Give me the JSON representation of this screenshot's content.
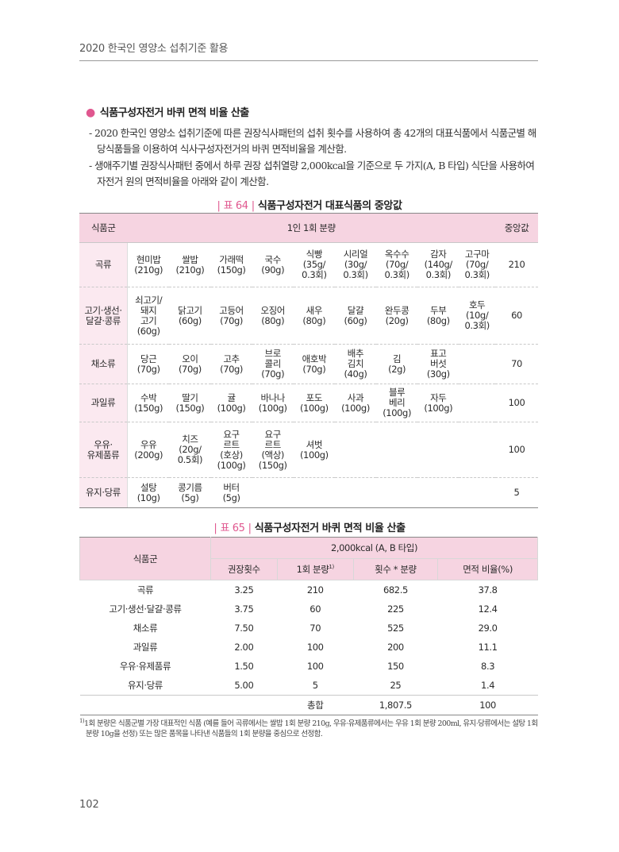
{
  "header": {
    "running_title": "2020 한국인 영양소 섭취기준 활용"
  },
  "section": {
    "title": "식품구성자전거 바퀴 면적 비율 산출",
    "paragraphs": [
      "- 2020 한국인 영양소 섭취기준에 따른 권장식사패턴의 섭취 횟수를 사용하여 총 42개의 대표식품에서 식품군별 해당식품들을 이용하여 식사구성자전거의 바퀴 면적비율을 계산함.",
      "- 생애주기별 권장식사패턴 중에서 하루 권장 섭취열량 2,000kcal을 기준으로 두 가지(A, B 타입) 식단을 사용하여 자전거 원의 면적비율을 아래와 같이 계산함."
    ]
  },
  "table64": {
    "caption_num": "표 64",
    "caption_title": "식품구성자전거 대표식품의 중앙값",
    "headers": {
      "group": "식품군",
      "serving": "1인 1회 분량",
      "median": "중앙값"
    },
    "rows": [
      {
        "group": "곡류",
        "median": "210",
        "items": [
          "현미밥\n(210g)",
          "쌀밥\n(210g)",
          "가래떡\n(150g)",
          "국수\n(90g)",
          "식빵\n(35g/\n0.3회)",
          "시리얼\n(30g/\n0.3회)",
          "옥수수\n(70g/\n0.3회)",
          "감자\n(140g/\n0.3회)",
          "고구마\n(70g/\n0.3회)"
        ]
      },
      {
        "group": "고기·생선·\n달걀·콩류",
        "median": "60",
        "items": [
          "쇠고기/\n돼지\n고기\n(60g)",
          "닭고기\n(60g)",
          "고등어\n(70g)",
          "오징어\n(80g)",
          "새우\n(80g)",
          "달걀\n(60g)",
          "완두콩\n(20g)",
          "두부\n(80g)",
          "호두\n(10g/\n0.3회)"
        ]
      },
      {
        "group": "채소류",
        "median": "70",
        "items": [
          "당근\n(70g)",
          "오이\n(70g)",
          "고추\n(70g)",
          "브로\n콜리\n(70g)",
          "애호박\n(70g)",
          "배추\n김치\n(40g)",
          "김\n(2g)",
          "표고\n버섯\n(30g)",
          ""
        ]
      },
      {
        "group": "과일류",
        "median": "100",
        "items": [
          "수박\n(150g)",
          "딸기\n(150g)",
          "귤\n(100g)",
          "바나나\n(100g)",
          "포도\n(100g)",
          "사과\n(100g)",
          "블루\n베리\n(100g)",
          "자두\n(100g)",
          ""
        ]
      },
      {
        "group": "우유·\n유제품류",
        "median": "100",
        "items": [
          "우유\n(200g)",
          "치즈\n(20g/\n0.5회)",
          "요구\n르트\n(호상)\n(100g)",
          "요구\n르트\n(액상)\n(150g)",
          "셔벗\n(100g)",
          "",
          "",
          "",
          ""
        ]
      },
      {
        "group": "유지·당류",
        "median": "5",
        "items": [
          "설탕\n(10g)",
          "콩기름\n(5g)",
          "버터\n(5g)",
          "",
          "",
          "",
          "",
          "",
          ""
        ]
      }
    ]
  },
  "table65": {
    "caption_num": "표 65",
    "caption_title": "식품구성자전거 바퀴 면적 비율 산출",
    "group_header": "식품군",
    "super_header": "2,000kcal (A, B 타입)",
    "columns": [
      "권장횟수",
      "1회 분량",
      "횟수 * 분량",
      "면적 비율(%)"
    ],
    "serving_footnote_mark": "1)",
    "rows": [
      {
        "group": "곡류",
        "count": "3.25",
        "serving": "210",
        "product": "682.5",
        "ratio": "37.8"
      },
      {
        "group": "고기·생선·달걀·콩류",
        "count": "3.75",
        "serving": "60",
        "product": "225",
        "ratio": "12.4"
      },
      {
        "group": "채소류",
        "count": "7.50",
        "serving": "70",
        "product": "525",
        "ratio": "29.0"
      },
      {
        "group": "과일류",
        "count": "2.00",
        "serving": "100",
        "product": "200",
        "ratio": "11.1"
      },
      {
        "group": "우유·유제품류",
        "count": "1.50",
        "serving": "100",
        "product": "150",
        "ratio": "8.3"
      },
      {
        "group": "유지·당류",
        "count": "5.00",
        "serving": "5",
        "product": "25",
        "ratio": "1.4"
      }
    ],
    "total": {
      "label": "총합",
      "product": "1,807.5",
      "ratio": "100"
    }
  },
  "footnote": {
    "mark": "1)",
    "text": "1회 분량은 식품군별 가장 대표적인 식품 (예를 들어 곡류에서는 쌀밥 1회 분량 210g, 우유·유제품류에서는 우유 1회 분량 200ml, 유지·당류에서는 설탕 1회 분량 10g을 선정) 또는 많은 품목을 나타낸 식품들의 1회 분량을 중심으로 선정함."
  },
  "page_number": "102",
  "colors": {
    "accent_pink": "#e0578f",
    "header_fill": "#f6d4e1",
    "group_fill": "#fbe9f0"
  }
}
